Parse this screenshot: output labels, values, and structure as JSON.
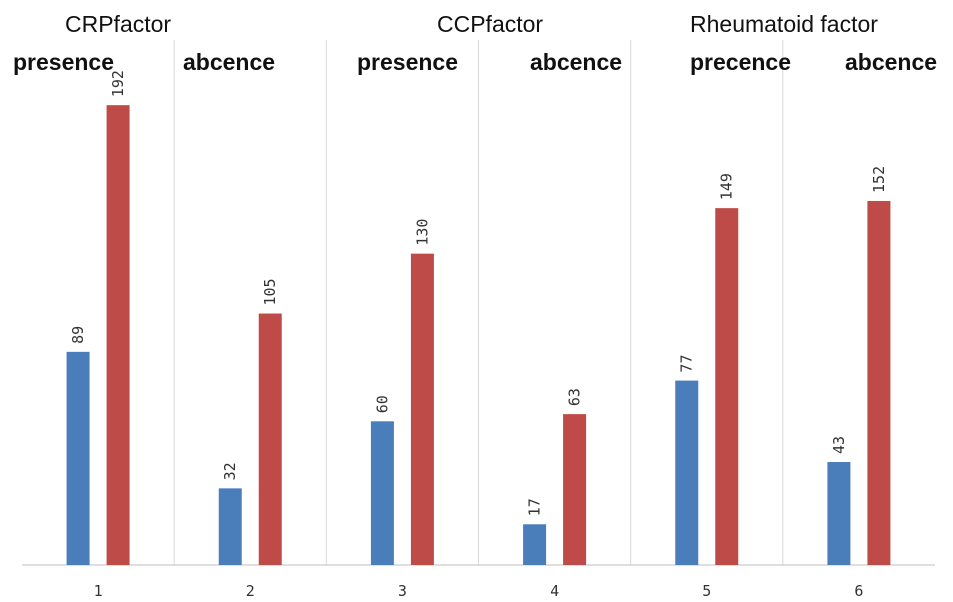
{
  "chart_data": {
    "type": "bar",
    "categories": [
      "1",
      "2",
      "3",
      "4",
      "5",
      "6"
    ],
    "series": [
      {
        "values": [
          89,
          32,
          60,
          17,
          77,
          43
        ],
        "color": "#4a7ebb"
      },
      {
        "values": [
          192,
          105,
          130,
          63,
          149,
          152
        ],
        "color": "#be4b48"
      }
    ],
    "group_titles": [
      "CRPfactor",
      "CCPfactor",
      "Rheumatoid factor"
    ],
    "sub_labels": [
      "presence",
      "abcence",
      "presence",
      "abcence",
      "precence",
      "abcence"
    ],
    "title": "",
    "xlabel": "",
    "ylabel": "",
    "ylim": [
      0,
      200
    ],
    "grid": false,
    "gridline_color": "#d9d9d9",
    "axis_color": "#bfbfbf",
    "legend": "none"
  }
}
